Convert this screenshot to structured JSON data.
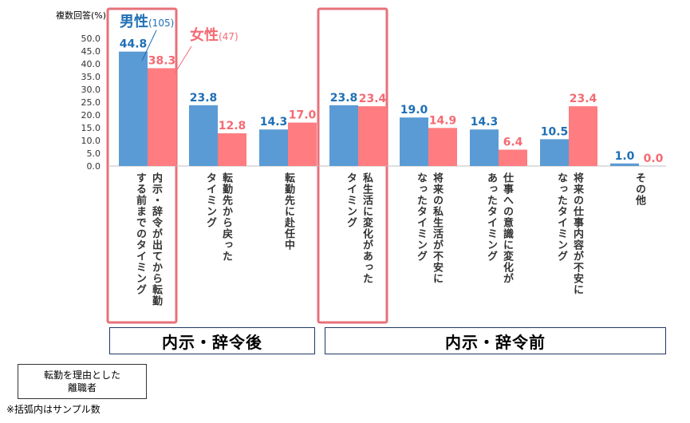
{
  "chart_data": {
    "type": "bar",
    "ylabel": "複数回答(%)",
    "yticks": [
      "50.0",
      "45.0",
      "40.0",
      "35.0",
      "30.0",
      "25.0",
      "20.0",
      "15.0",
      "10.0",
      "5.0",
      "0.0"
    ],
    "ylim": [
      0,
      50
    ],
    "categories": [
      [
        "内示・辞令が出てから転勤",
        "する前までのタイミング"
      ],
      [
        "転勤先から戻った",
        "タイミング"
      ],
      [
        "転勤先に赴任中"
      ],
      [
        "私生活に変化があった",
        "タイミング"
      ],
      [
        "将来の私生活が不安に",
        "なったタイミング"
      ],
      [
        "仕事への意識に変化が",
        "あったタイミング"
      ],
      [
        "将来の仕事内容が不安に",
        "なったタイミング"
      ],
      [
        "その他"
      ]
    ],
    "series": [
      {
        "name": "男性",
        "sample": "(105)",
        "color": "#5b9bd5",
        "label_color": "#1f6fb5",
        "values": [
          44.8,
          23.8,
          14.3,
          23.8,
          19.0,
          14.3,
          10.5,
          1.0
        ],
        "labels": [
          "44.8",
          "23.8",
          "14.3",
          "23.8",
          "19.0",
          "14.3",
          "10.5",
          "1.0"
        ]
      },
      {
        "name": "女性",
        "sample": "(47)",
        "color": "#ff7c80",
        "label_color": "#f46a73",
        "values": [
          38.3,
          12.8,
          17.0,
          23.4,
          14.9,
          6.4,
          23.4,
          0.0
        ],
        "labels": [
          "38.3",
          "12.8",
          "17.0",
          "23.4",
          "14.9",
          "6.4",
          "23.4",
          "0.0"
        ]
      }
    ],
    "highlight_color": "#e7717a"
  },
  "groups": {
    "after": "内示・辞令後",
    "before": "内示・辞令前"
  },
  "note": "転勤を理由とした\n離職者",
  "footnote": "※括弧内はサンプル数"
}
